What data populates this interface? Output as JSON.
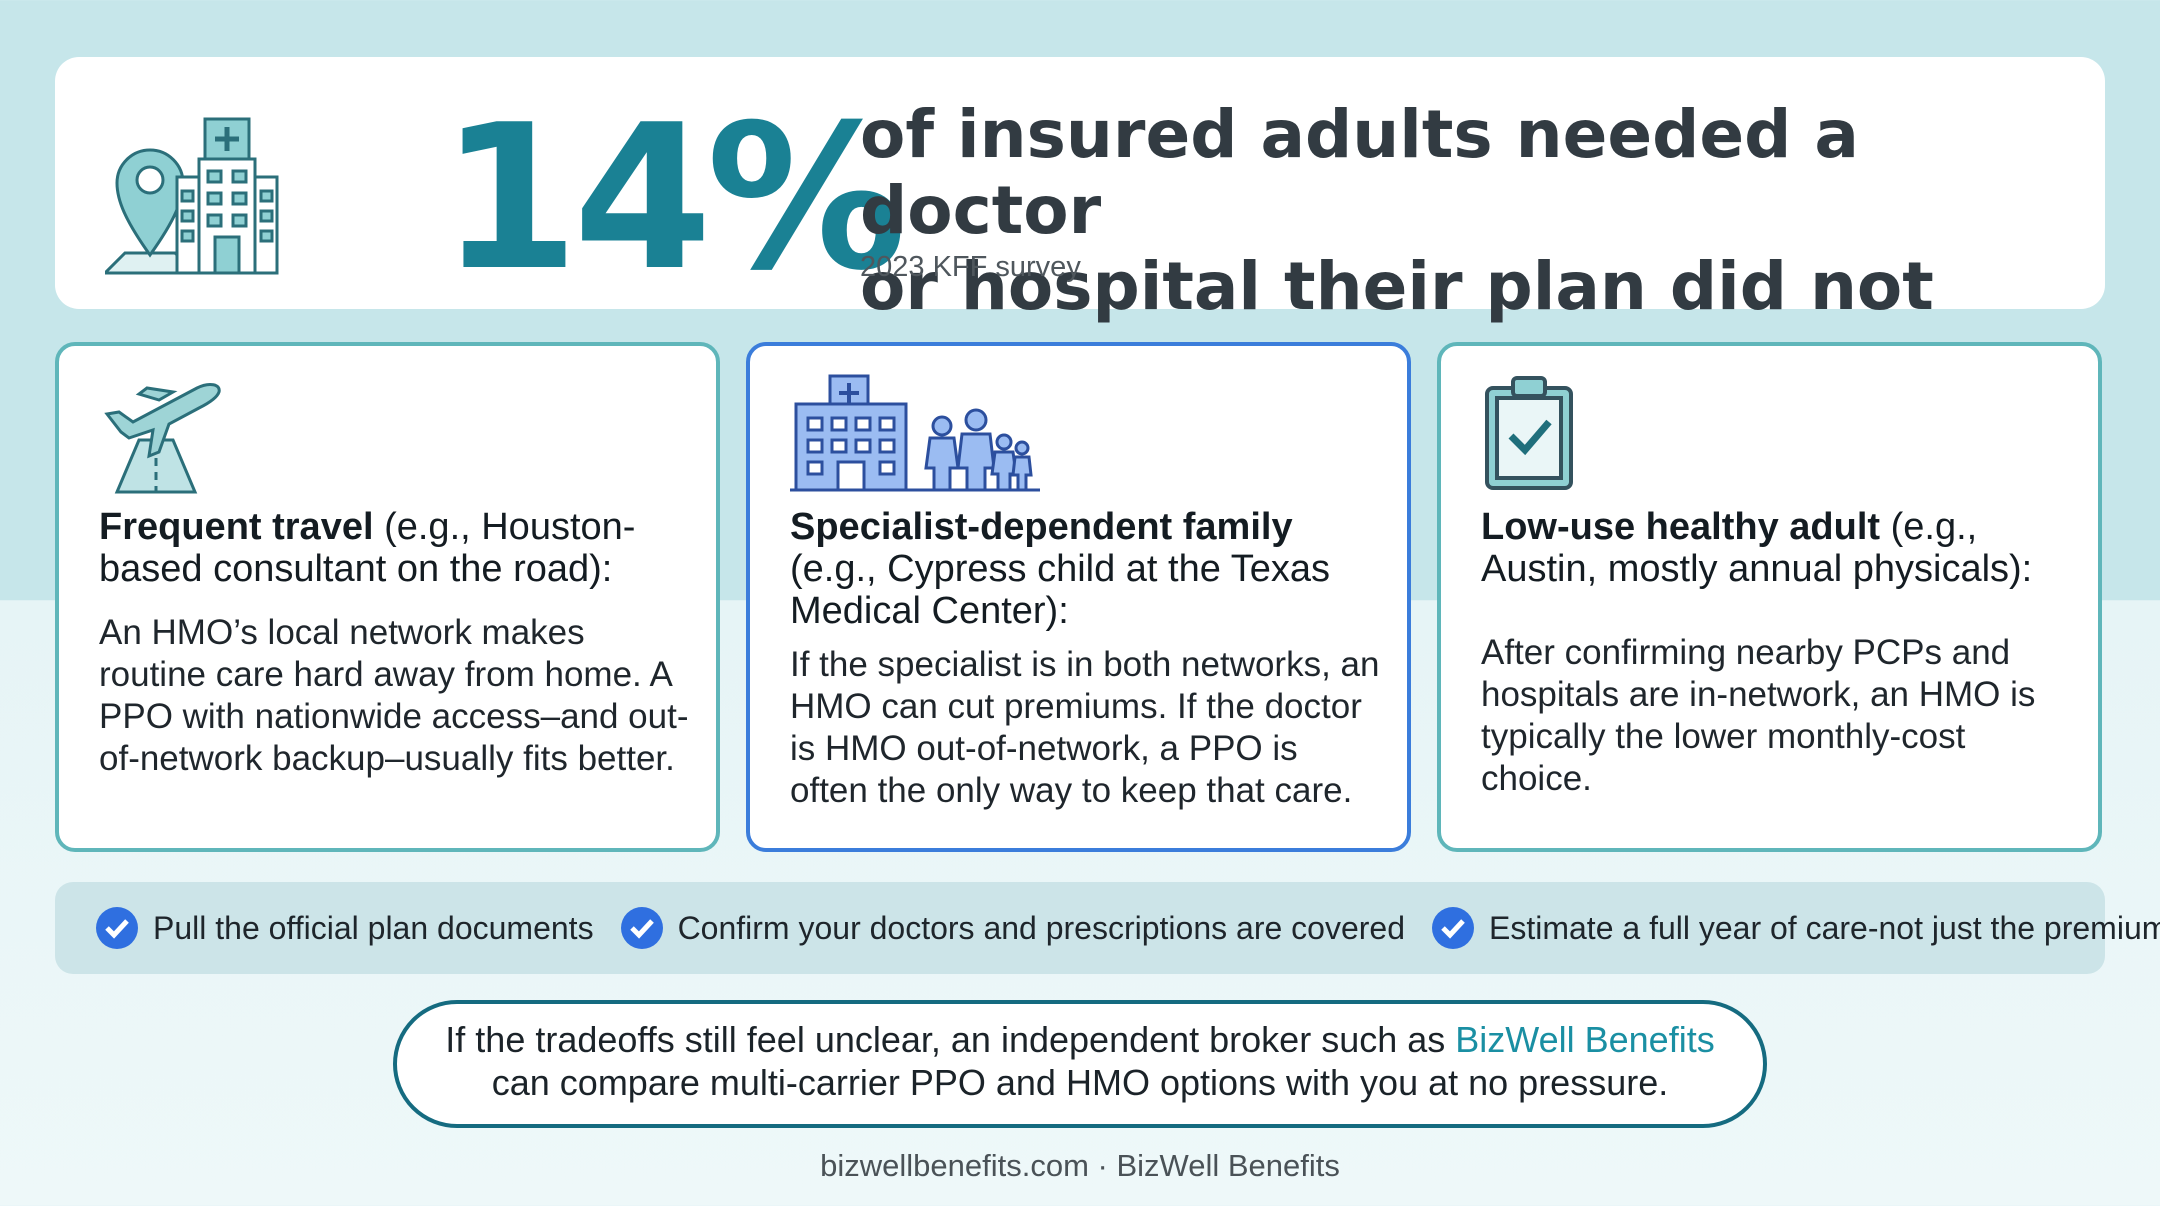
{
  "hero": {
    "icon": "hospital-location-icon",
    "stat": "14%",
    "headline_line1": "of insured adults needed a doctor",
    "headline_line2": "or hospital their plan did not cover",
    "source": "2023 KFF survey"
  },
  "cards": [
    {
      "icon": "airplane-takeoff-icon",
      "title_bold": "Frequent travel",
      "title_rest": " (e.g., Houston-based consultant on the road):",
      "body": "An HMO’s local network makes routine care hard away from home. A PPO with nationwide access–and out-of-network backup–usually fits better."
    },
    {
      "icon": "hospital-family-icon",
      "title_bold": "Specialist-dependent family",
      "title_rest": " (e.g., Cypress child at the Texas Medical Center):",
      "body": "If the specialist is in both networks, an HMO can cut premiums. If the doctor is HMO out-of-network, a PPO is often the only way to keep that care."
    },
    {
      "icon": "clipboard-check-icon",
      "title_bold": "Low-use healthy adult",
      "title_rest": " (e.g., Austin, mostly annual physicals):",
      "body": "After confirming nearby PCPs and hospitals are in-network, an HMO is typically the lower monthly-cost choice."
    }
  ],
  "checklist": [
    "Pull the official plan documents",
    "Confirm your doctors and prescriptions are covered",
    "Estimate a full year of care-not just the premium"
  ],
  "cta": {
    "text_before": "If the tradeoffs still feel unclear, an independent broker such as ",
    "brand": "BizWell Benefits",
    "text_after": "can compare multi-carrier PPO and HMO options with you at no pressure."
  },
  "footer": "bizwellbenefits.com · BizWell Benefits",
  "colors": {
    "accent": "#1a8194",
    "card_border": "#5fb6ba",
    "card_border_highlight": "#3b7ddb",
    "check_blue": "#2f6fe0",
    "brand_link": "#1a8fa3"
  }
}
